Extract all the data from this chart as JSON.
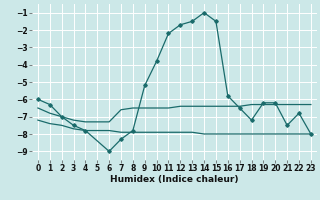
{
  "xlabel": "Humidex (Indice chaleur)",
  "bg_color": "#cce8e8",
  "grid_color": "#ffffff",
  "line_color": "#1a6b6b",
  "xlim": [
    -0.5,
    23.5
  ],
  "ylim": [
    -9.5,
    -0.5
  ],
  "xticks": [
    0,
    1,
    2,
    3,
    4,
    5,
    6,
    7,
    8,
    9,
    10,
    11,
    12,
    13,
    14,
    15,
    16,
    17,
    18,
    19,
    20,
    21,
    22,
    23
  ],
  "yticks": [
    -1,
    -2,
    -3,
    -4,
    -5,
    -6,
    -7,
    -8,
    -9
  ],
  "line1_x": [
    0,
    1,
    2,
    3,
    4,
    6,
    7,
    8,
    9,
    10,
    11,
    12,
    13,
    14,
    15,
    16,
    17,
    18,
    19,
    20,
    21,
    22,
    23
  ],
  "line1_y": [
    -6.0,
    -6.3,
    -7.0,
    -7.5,
    -7.8,
    -9.0,
    -8.3,
    -7.8,
    -5.2,
    -3.8,
    -2.2,
    -1.7,
    -1.5,
    -1.0,
    -1.5,
    -5.8,
    -6.5,
    -7.2,
    -6.2,
    -6.2,
    -7.5,
    -6.8,
    -8.0
  ],
  "line2_x": [
    0,
    1,
    2,
    3,
    4,
    5,
    6,
    7,
    8,
    9,
    10,
    11,
    12,
    13,
    14,
    15,
    16,
    17,
    18,
    19,
    20,
    21,
    22,
    23
  ],
  "line2_y": [
    -6.5,
    -6.8,
    -7.0,
    -7.2,
    -7.3,
    -7.3,
    -7.3,
    -6.6,
    -6.5,
    -6.5,
    -6.5,
    -6.5,
    -6.4,
    -6.4,
    -6.4,
    -6.4,
    -6.4,
    -6.4,
    -6.3,
    -6.3,
    -6.3,
    -6.3,
    -6.3,
    -6.3
  ],
  "line3_x": [
    0,
    1,
    2,
    3,
    4,
    5,
    6,
    7,
    8,
    9,
    10,
    11,
    12,
    13,
    14,
    15,
    16,
    17,
    18,
    19,
    20,
    21,
    22,
    23
  ],
  "line3_y": [
    -7.2,
    -7.4,
    -7.5,
    -7.7,
    -7.8,
    -7.8,
    -7.8,
    -7.9,
    -7.9,
    -7.9,
    -7.9,
    -7.9,
    -7.9,
    -7.9,
    -8.0,
    -8.0,
    -8.0,
    -8.0,
    -8.0,
    -8.0,
    -8.0,
    -8.0,
    -8.0,
    -8.0
  ]
}
